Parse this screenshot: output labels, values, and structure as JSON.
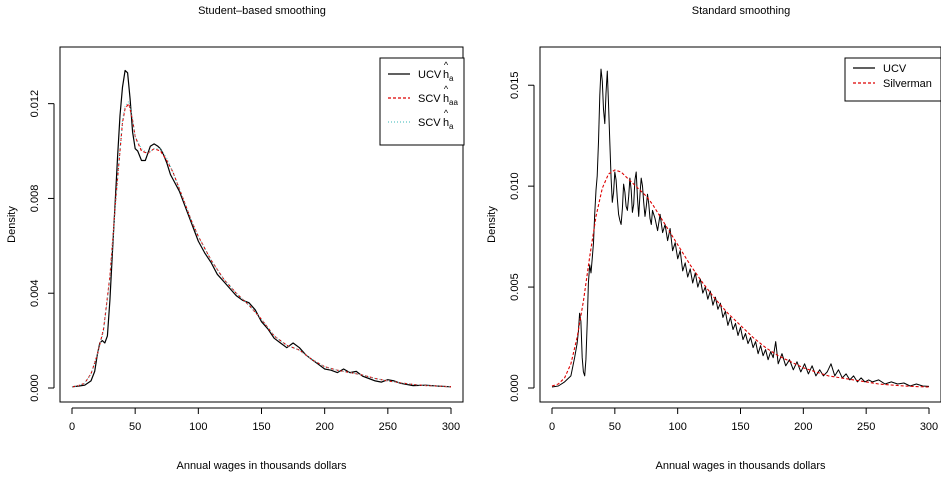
{
  "chart_data": [
    {
      "type": "line",
      "title": "Student–based smoothing",
      "xlabel": "Annual wages in thousands dollars",
      "ylabel": "Density",
      "xlim": [
        0,
        300
      ],
      "ylim": [
        0,
        0.0138
      ],
      "xticks": [
        0,
        50,
        100,
        150,
        200,
        250,
        300
      ],
      "xtick_labels": [
        "0",
        "50",
        "100",
        "150",
        "200",
        "250",
        "300"
      ],
      "yticks": [
        0,
        0.004,
        0.008,
        0.012
      ],
      "ytick_labels": [
        "0.000",
        "0.004",
        "0.008",
        "0.012"
      ],
      "grid": false,
      "legend_position": "top-right",
      "legend": [
        {
          "label": "UCV",
          "sym": "h",
          "sub": "a",
          "color": "#000000",
          "dash": ""
        },
        {
          "label": "SCV",
          "sym": "h",
          "sub": "aa",
          "color": "#dd0000",
          "dash": "3,2"
        },
        {
          "label": "SCV",
          "sym": "h",
          "sub": "a",
          "color": "#5fc5c5",
          "dash": "1,2"
        }
      ],
      "series": [
        {
          "color": "#000000",
          "dash": "",
          "width": 1.2,
          "x": [
            0,
            5,
            10,
            15,
            18,
            20,
            22,
            24,
            26,
            28,
            30,
            32,
            34,
            36,
            38,
            40,
            42,
            44,
            46,
            48,
            50,
            52,
            55,
            58,
            60,
            62,
            65,
            68,
            70,
            72,
            75,
            78,
            80,
            85,
            90,
            95,
            100,
            105,
            110,
            115,
            120,
            125,
            130,
            135,
            140,
            145,
            150,
            155,
            160,
            165,
            170,
            175,
            180,
            185,
            190,
            195,
            200,
            205,
            210,
            215,
            220,
            225,
            230,
            235,
            240,
            245,
            250,
            255,
            260,
            270,
            280,
            290,
            300
          ],
          "y": [
            5e-05,
            8e-05,
            0.00012,
            0.0003,
            0.0007,
            0.0014,
            0.0019,
            0.002,
            0.0019,
            0.0022,
            0.0037,
            0.0057,
            0.0077,
            0.0097,
            0.0115,
            0.0127,
            0.0134,
            0.0133,
            0.0122,
            0.0108,
            0.0101,
            0.01,
            0.0096,
            0.0096,
            0.0099,
            0.0102,
            0.0103,
            0.0102,
            0.0101,
            0.0099,
            0.0095,
            0.009,
            0.0088,
            0.0083,
            0.0076,
            0.0069,
            0.0062,
            0.0057,
            0.0053,
            0.0048,
            0.0045,
            0.0042,
            0.0039,
            0.0037,
            0.0036,
            0.0033,
            0.0028,
            0.0025,
            0.0021,
            0.0019,
            0.0017,
            0.0019,
            0.0017,
            0.0014,
            0.0012,
            0.001,
            0.0008,
            0.00075,
            0.00065,
            0.0008,
            0.00065,
            0.0007,
            0.0005,
            0.0004,
            0.0003,
            0.00025,
            0.00035,
            0.0003,
            0.0002,
            0.0001,
            0.00012,
            8e-05,
            5e-05
          ]
        },
        {
          "color": "#dd0000",
          "dash": "3,2",
          "width": 1.1,
          "x": [
            0,
            5,
            10,
            15,
            20,
            25,
            30,
            35,
            40,
            42,
            45,
            48,
            50,
            55,
            60,
            65,
            70,
            75,
            80,
            85,
            90,
            95,
            100,
            110,
            120,
            130,
            140,
            150,
            160,
            170,
            180,
            190,
            200,
            210,
            220,
            230,
            240,
            250,
            260,
            270,
            280,
            290,
            300
          ],
          "y": [
            5e-05,
            0.0001,
            0.0002,
            0.0006,
            0.0014,
            0.0025,
            0.0047,
            0.0082,
            0.0112,
            0.0118,
            0.012,
            0.0113,
            0.0106,
            0.01,
            0.0099,
            0.0101,
            0.01,
            0.0096,
            0.0091,
            0.0084,
            0.0077,
            0.007,
            0.0064,
            0.0054,
            0.0046,
            0.004,
            0.0035,
            0.0029,
            0.0022,
            0.0018,
            0.0016,
            0.0012,
            0.0009,
            0.00075,
            0.00065,
            0.00055,
            0.0004,
            0.0003,
            0.00022,
            0.00015,
            0.0001,
            8e-05,
            5e-05
          ]
        },
        {
          "color": "#5fc5c5",
          "dash": "1,2",
          "width": 1.0,
          "x": [
            0,
            5,
            10,
            15,
            20,
            25,
            30,
            35,
            40,
            42,
            45,
            48,
            50,
            55,
            60,
            65,
            70,
            75,
            80,
            85,
            90,
            95,
            100,
            110,
            120,
            130,
            140,
            150,
            160,
            170,
            180,
            190,
            200,
            210,
            220,
            230,
            240,
            250,
            260,
            270,
            280,
            290,
            300
          ],
          "y": [
            5e-05,
            0.0001,
            0.0002,
            0.0006,
            0.0014,
            0.0024,
            0.0046,
            0.0081,
            0.0113,
            0.0119,
            0.0121,
            0.0114,
            0.0106,
            0.0101,
            0.0099,
            0.0101,
            0.0101,
            0.0097,
            0.0091,
            0.0084,
            0.0077,
            0.007,
            0.0064,
            0.0054,
            0.0046,
            0.004,
            0.0035,
            0.0029,
            0.0022,
            0.0018,
            0.0016,
            0.0012,
            0.0009,
            0.00075,
            0.00065,
            0.00055,
            0.0004,
            0.0003,
            0.00022,
            0.00015,
            0.0001,
            8e-05,
            5e-05
          ]
        }
      ]
    },
    {
      "type": "line",
      "title": "Standard smoothing",
      "xlabel": "Annual wages in thousands dollars",
      "ylabel": "Density",
      "xlim": [
        0,
        300
      ],
      "ylim": [
        0,
        0.0162
      ],
      "xticks": [
        0,
        50,
        100,
        150,
        200,
        250,
        300
      ],
      "xtick_labels": [
        "0",
        "50",
        "100",
        "150",
        "200",
        "250",
        "300"
      ],
      "yticks": [
        0,
        0.005,
        0.01,
        0.015
      ],
      "ytick_labels": [
        "0.000",
        "0.005",
        "0.010",
        "0.015"
      ],
      "grid": false,
      "legend_position": "top-right",
      "legend": [
        {
          "label": "UCV",
          "sym": "",
          "sub": "",
          "color": "#000000",
          "dash": ""
        },
        {
          "label": "Silverman",
          "sym": "",
          "sub": "",
          "color": "#dd0000",
          "dash": "3,2"
        }
      ],
      "series": [
        {
          "color": "#000000",
          "dash": "",
          "width": 1.0,
          "x": [
            0,
            5,
            10,
            15,
            18,
            20,
            21,
            22,
            23,
            24,
            25,
            26,
            27,
            28,
            29,
            30,
            31,
            32,
            33,
            34,
            35,
            36,
            37,
            38,
            39,
            40,
            41,
            42,
            43,
            44,
            45,
            46,
            47,
            48,
            49,
            50,
            51,
            52,
            53,
            54,
            55,
            56,
            57,
            58,
            59,
            60,
            61,
            62,
            63,
            64,
            65,
            66,
            67,
            68,
            69,
            70,
            71,
            72,
            73,
            74,
            75,
            76,
            77,
            78,
            79,
            80,
            82,
            84,
            86,
            88,
            90,
            92,
            94,
            96,
            98,
            100,
            102,
            104,
            106,
            108,
            110,
            112,
            114,
            116,
            118,
            120,
            122,
            124,
            126,
            128,
            130,
            132,
            134,
            136,
            138,
            140,
            142,
            144,
            146,
            148,
            150,
            152,
            154,
            156,
            158,
            160,
            162,
            164,
            166,
            168,
            170,
            172,
            174,
            176,
            178,
            180,
            183,
            186,
            189,
            192,
            195,
            198,
            201,
            204,
            207,
            210,
            213,
            216,
            219,
            222,
            225,
            228,
            231,
            234,
            237,
            240,
            243,
            246,
            249,
            252,
            255,
            260,
            265,
            270,
            275,
            280,
            285,
            290,
            295,
            300
          ],
          "y": [
            5e-05,
            0.0001,
            0.0003,
            0.0006,
            0.0015,
            0.0022,
            0.0028,
            0.0037,
            0.0033,
            0.0015,
            0.0008,
            0.0006,
            0.0014,
            0.0032,
            0.0052,
            0.0061,
            0.0057,
            0.0064,
            0.0072,
            0.0086,
            0.0098,
            0.0105,
            0.0122,
            0.0145,
            0.0158,
            0.0152,
            0.0138,
            0.0131,
            0.0146,
            0.0157,
            0.0141,
            0.0122,
            0.0104,
            0.0092,
            0.0097,
            0.0107,
            0.0103,
            0.0094,
            0.0086,
            0.0083,
            0.0081,
            0.0089,
            0.0101,
            0.0097,
            0.009,
            0.0088,
            0.0095,
            0.0104,
            0.0098,
            0.0087,
            0.0091,
            0.0103,
            0.0107,
            0.0094,
            0.0085,
            0.0096,
            0.0104,
            0.01,
            0.0092,
            0.0085,
            0.009,
            0.0096,
            0.0091,
            0.0084,
            0.0081,
            0.0088,
            0.0084,
            0.0078,
            0.0086,
            0.0077,
            0.0081,
            0.0073,
            0.0079,
            0.0068,
            0.0072,
            0.0064,
            0.0068,
            0.0058,
            0.0062,
            0.0055,
            0.0059,
            0.0052,
            0.0057,
            0.005,
            0.0054,
            0.0047,
            0.005,
            0.0044,
            0.0048,
            0.0041,
            0.0045,
            0.0039,
            0.0042,
            0.0035,
            0.0038,
            0.0031,
            0.0035,
            0.0029,
            0.0032,
            0.0026,
            0.003,
            0.0024,
            0.0027,
            0.0022,
            0.0025,
            0.002,
            0.0023,
            0.0017,
            0.0021,
            0.0016,
            0.0019,
            0.0014,
            0.0018,
            0.0015,
            0.0023,
            0.0012,
            0.0017,
            0.0011,
            0.0014,
            0.0009,
            0.0013,
            0.0008,
            0.0012,
            0.0007,
            0.0011,
            0.0006,
            0.0009,
            0.0006,
            0.0008,
            0.0012,
            0.0006,
            0.0009,
            0.0005,
            0.0007,
            0.0004,
            0.0006,
            0.0003,
            0.0005,
            0.0003,
            0.0004,
            0.0003,
            0.0004,
            0.0002,
            0.0003,
            0.0002,
            0.00025,
            0.0001,
            0.0002,
            0.0001,
            8e-05
          ]
        },
        {
          "color": "#dd0000",
          "dash": "3,2",
          "width": 1.1,
          "x": [
            0,
            5,
            10,
            15,
            20,
            25,
            30,
            35,
            40,
            45,
            50,
            55,
            60,
            65,
            70,
            75,
            80,
            85,
            90,
            95,
            100,
            110,
            120,
            130,
            140,
            150,
            160,
            170,
            180,
            190,
            200,
            210,
            220,
            230,
            240,
            250,
            260,
            270,
            280,
            290,
            300
          ],
          "y": [
            0.0001,
            0.0002,
            0.0005,
            0.0012,
            0.0025,
            0.0043,
            0.0065,
            0.0085,
            0.0099,
            0.0106,
            0.0108,
            0.0107,
            0.0104,
            0.0101,
            0.0098,
            0.0095,
            0.0091,
            0.0086,
            0.0081,
            0.0076,
            0.0071,
            0.0061,
            0.0052,
            0.0044,
            0.0037,
            0.0031,
            0.0025,
            0.002,
            0.0016,
            0.0013,
            0.001,
            0.0008,
            0.0006,
            0.0005,
            0.0004,
            0.0003,
            0.0002,
            0.00015,
            0.0001,
            7e-05,
            5e-05
          ]
        }
      ]
    }
  ]
}
